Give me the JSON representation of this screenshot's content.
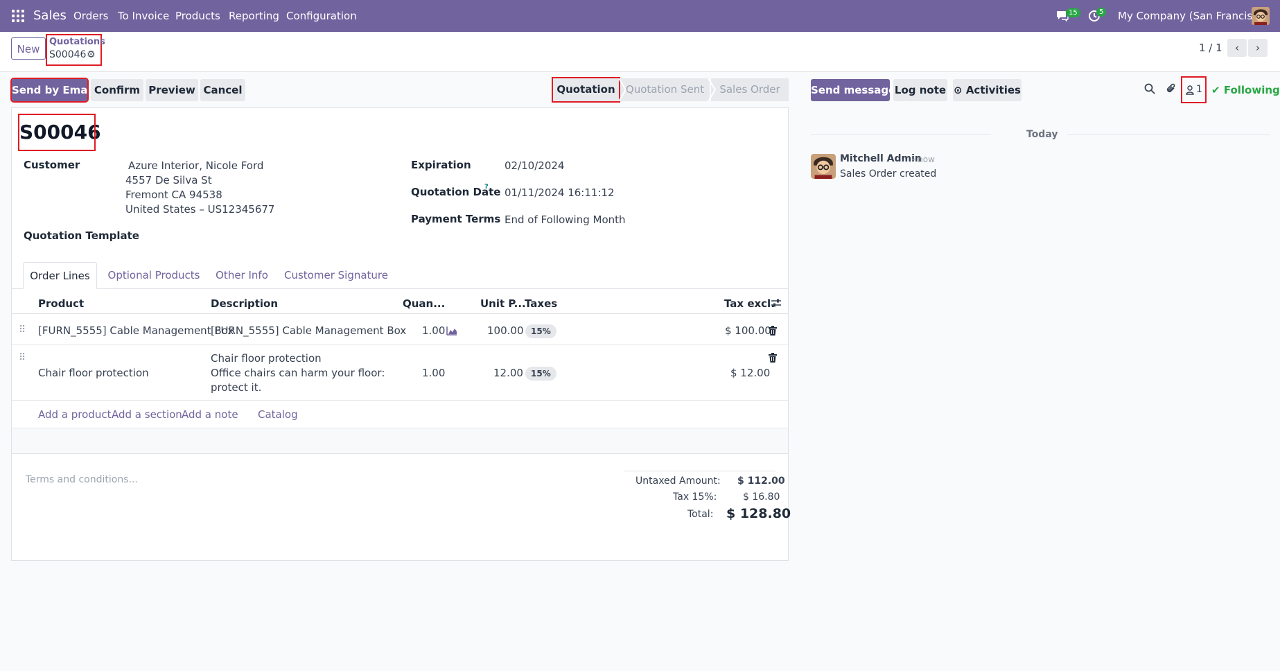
{
  "navbar": {
    "app_name": "Sales",
    "menu": [
      "Orders",
      "To Invoice",
      "Products",
      "Reporting",
      "Configuration"
    ],
    "messages_count": "15",
    "activities_count": "5",
    "company": "My Company (San Francisco)"
  },
  "control": {
    "new_label": "New",
    "breadcrumb_parent": "Quotations",
    "breadcrumb_current": "S00046",
    "pager": "1 / 1"
  },
  "actions": {
    "send_by_email": "Send by Email",
    "confirm": "Confirm",
    "preview": "Preview",
    "cancel": "Cancel"
  },
  "status_stages": [
    "Quotation",
    "Quotation Sent",
    "Sales Order"
  ],
  "chatter": {
    "send_message": "Send message",
    "log_note": "Log note",
    "activities": "Activities",
    "followers_count": "1",
    "following": "Following",
    "date_separator": "Today",
    "message_author": "Mitchell Admin",
    "message_time": "- now",
    "message_body": "Sales Order created"
  },
  "form": {
    "name": "S00046",
    "customer_label": "Customer",
    "customer_name": "Azure Interior, Nicole Ford",
    "customer_address1": "4557 De Silva St",
    "customer_address2": "Fremont CA 94538",
    "customer_address3": "United States – US12345677",
    "template_label": "Quotation Template",
    "expiration_label": "Expiration",
    "expiration_value": "02/10/2024",
    "quotation_date_label": "Quotation Date",
    "quotation_date_help": "?",
    "quotation_date_value": "01/11/2024 16:11:12",
    "payment_terms_label": "Payment Terms",
    "payment_terms_value": "End of Following Month"
  },
  "tabs": [
    "Order Lines",
    "Optional Products",
    "Other Info",
    "Customer Signature"
  ],
  "order_lines": {
    "headers": [
      "Product",
      "Description",
      "Quan...",
      "Unit P...",
      "Taxes",
      "Tax excl."
    ],
    "rows": [
      {
        "product": "[FURN_5555] Cable Management Box",
        "description": "[FURN_5555] Cable Management Box",
        "quantity": "1.00",
        "unit_price": "100.00",
        "tax": "15%",
        "subtotal": "$ 100.00"
      },
      {
        "product": "Chair floor protection",
        "description_lines": [
          "Chair floor protection",
          "Office chairs can harm your floor:",
          "protect it."
        ],
        "quantity": "1.00",
        "unit_price": "12.00",
        "tax": "15%",
        "subtotal": "$ 12.00"
      }
    ],
    "add_links": [
      "Add a product",
      "Add a section",
      "Add a note",
      "Catalog"
    ]
  },
  "footer": {
    "terms_placeholder": "Terms and conditions...",
    "untaxed_label": "Untaxed Amount:",
    "untaxed_value": "$ 112.00",
    "tax_label": "Tax 15%:",
    "tax_value": "$ 16.80",
    "total_label": "Total:",
    "total_value": "$ 128.80"
  },
  "colors": {
    "brand": "#71639e",
    "badge_green": "#28a745",
    "highlight_red": "#e01b24"
  }
}
